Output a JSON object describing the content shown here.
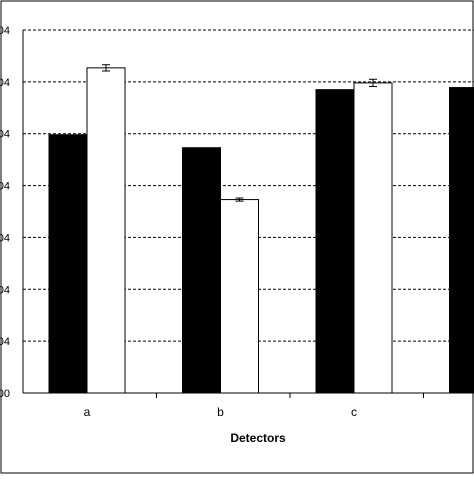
{
  "chart_data": {
    "type": "bar",
    "title": "",
    "xlabel": "Detectors",
    "ylabel": "",
    "categories": [
      "a",
      "b",
      "c",
      ""
    ],
    "y_tick_labels": [
      "00",
      "04",
      "04",
      "04",
      "04",
      "04",
      "04",
      "04"
    ],
    "ylim": [
      0,
      7
    ],
    "grid": "dashed horizontal",
    "series": [
      {
        "values": [
          4.98,
          4.73,
          5.85,
          5.89
        ],
        "color": "#000000"
      },
      {
        "values": [
          6.27,
          3.73,
          5.98,
          null
        ],
        "error": [
          0.06,
          0.03,
          0.07,
          null
        ],
        "color": "#ffffff"
      }
    ]
  }
}
